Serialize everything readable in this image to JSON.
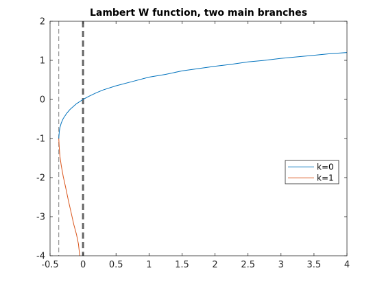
{
  "chart_data": {
    "type": "line",
    "title": "Lambert W function, two main branches",
    "xlabel": "",
    "ylabel": "",
    "xlim": [
      -0.5,
      4
    ],
    "ylim": [
      -4,
      2
    ],
    "xticks": [
      -0.5,
      0,
      0.5,
      1,
      1.5,
      2,
      2.5,
      3,
      3.5,
      4
    ],
    "xtick_labels": [
      "-0.5",
      "0",
      "0.5",
      "1",
      "1.5",
      "2",
      "2.5",
      "3",
      "3.5",
      "4"
    ],
    "yticks": [
      -4,
      -3,
      -2,
      -1,
      0,
      1,
      2
    ],
    "ytick_labels": [
      "-4",
      "-3",
      "-2",
      "-1",
      "0",
      "1",
      "2"
    ],
    "grid": false,
    "legend_position": "right",
    "series": [
      {
        "name": "k=0",
        "color": "#0072BD",
        "x": [
          -0.3679,
          -0.36,
          -0.35,
          -0.33,
          -0.3,
          -0.25,
          -0.2,
          -0.1,
          0,
          0.1,
          0.2,
          0.3,
          0.5,
          0.75,
          1,
          1.25,
          1.5,
          1.75,
          2,
          2.25,
          2.5,
          2.75,
          3,
          3.25,
          3.5,
          3.75,
          4
        ],
        "y": [
          -1,
          -0.82,
          -0.72,
          -0.6,
          -0.49,
          -0.36,
          -0.26,
          -0.11,
          0,
          0.09,
          0.17,
          0.24,
          0.35,
          0.46,
          0.57,
          0.64,
          0.73,
          0.79,
          0.85,
          0.9,
          0.96,
          1.0,
          1.05,
          1.09,
          1.13,
          1.17,
          1.2
        ]
      },
      {
        "name": "k=1",
        "color": "#D95319",
        "x": [
          -0.3679,
          -0.36,
          -0.35,
          -0.33,
          -0.3,
          -0.27,
          -0.22,
          -0.18,
          -0.14,
          -0.1,
          -0.07,
          -0.05
        ],
        "y": [
          -1,
          -1.26,
          -1.46,
          -1.7,
          -1.97,
          -2.2,
          -2.6,
          -2.9,
          -3.2,
          -3.45,
          -3.7,
          -4.0
        ]
      }
    ],
    "vlines": [
      {
        "x": -0.3679,
        "style": "dashed",
        "color": "#808080",
        "width": 1
      },
      {
        "x": 0,
        "style": "dashed",
        "color": "#666666",
        "width": 3
      }
    ]
  }
}
